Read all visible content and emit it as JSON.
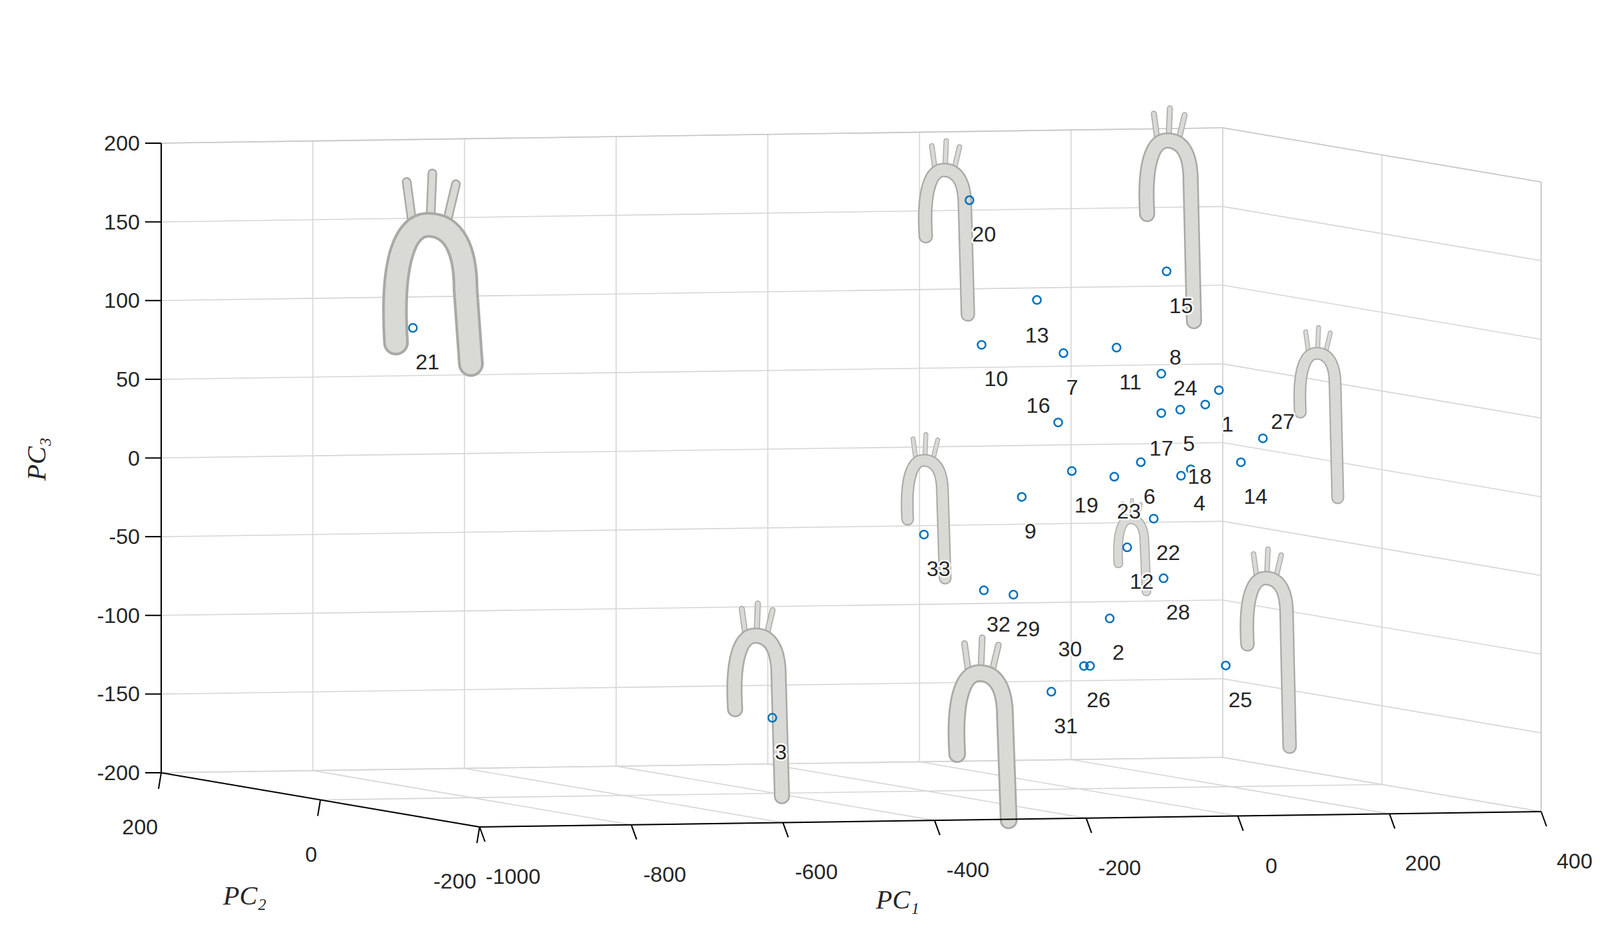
{
  "chart_data": {
    "type": "scatter3d",
    "x_label": "PC₁",
    "y_label": "PC₂",
    "z_label": "PC₃",
    "point_labels": [
      "1",
      "2",
      "3",
      "4",
      "5",
      "6",
      "7",
      "8",
      "9",
      "10",
      "11",
      "12",
      "13",
      "14",
      "15",
      "16",
      "17",
      "18",
      "19",
      "20",
      "21",
      "22",
      "23",
      "24",
      "25",
      "26",
      "27",
      "28",
      "29",
      "30",
      "31",
      "32",
      "33"
    ],
    "x": [
      185,
      41,
      -404,
      148,
      134,
      82,
      -20,
      109,
      -75,
      -128,
      50,
      64,
      -55,
      214,
      116,
      -27,
      109,
      135,
      -9,
      -144,
      -878,
      99,
      47,
      167,
      194,
      7,
      243,
      112,
      -86,
      15,
      -36,
      -125,
      -204
    ],
    "y": [
      0,
      0,
      0,
      0,
      0,
      0,
      0,
      0,
      0,
      0,
      0,
      0,
      0,
      0,
      0,
      0,
      0,
      0,
      0,
      0,
      0,
      0,
      0,
      0,
      0,
      0,
      0,
      0,
      0,
      0,
      0,
      0,
      0
    ],
    "z": [
      52,
      -92,
      -152,
      2,
      40,
      7,
      77,
      63,
      -14,
      83,
      80,
      -47,
      111,
      6,
      128,
      33,
      38,
      -2,
      2,
      175,
      99,
      -29,
      -2,
      43,
      -123,
      -122,
      21,
      -67,
      -76,
      -122,
      -138,
      -73,
      -37
    ],
    "xlim": [
      -1000,
      400
    ],
    "ylim": [
      -200,
      200
    ],
    "zlim": [
      -200,
      200
    ],
    "xticks": [
      -1000,
      -800,
      -600,
      -400,
      -200,
      0,
      200,
      400
    ],
    "yticks": [
      -200,
      0,
      200
    ],
    "zticks": [
      -200,
      -150,
      -100,
      -50,
      0,
      50,
      100,
      150,
      200
    ],
    "color": "#0072bd",
    "marker": "circle",
    "grid": true
  }
}
